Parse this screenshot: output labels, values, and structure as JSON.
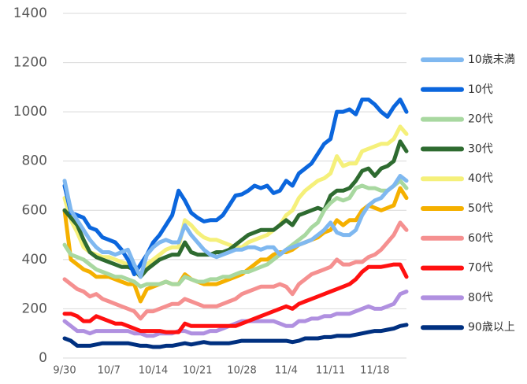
{
  "chart_data": {
    "type": "line",
    "categories": [
      "9/30",
      null,
      null,
      null,
      null,
      null,
      null,
      "10/7",
      null,
      null,
      null,
      null,
      null,
      null,
      "10/14",
      null,
      null,
      null,
      null,
      null,
      null,
      "10/21",
      null,
      null,
      null,
      null,
      null,
      null,
      "10/28",
      null,
      null,
      null,
      null,
      null,
      null,
      "11/4",
      null,
      null,
      null,
      null,
      null,
      null,
      "11/11",
      null,
      null,
      null,
      null,
      null,
      null,
      "11/18",
      null,
      null,
      null,
      null,
      null
    ],
    "ylim": [
      0,
      1400
    ],
    "yticks": [
      0,
      200,
      400,
      600,
      800,
      1000,
      1200,
      1400
    ],
    "grid": true,
    "legend": "right",
    "series": [
      {
        "name": "10歳未満",
        "color": "#7fb8f0",
        "values": [
          720,
          600,
          560,
          520,
          480,
          450,
          430,
          430,
          420,
          430,
          440,
          380,
          330,
          420,
          450,
          470,
          480,
          470,
          470,
          540,
          500,
          470,
          440,
          420,
          410,
          420,
          430,
          440,
          440,
          450,
          450,
          440,
          450,
          450,
          420,
          440,
          450,
          460,
          470,
          480,
          500,
          520,
          550,
          510,
          500,
          500,
          520,
          580,
          620,
          640,
          650,
          680,
          700,
          740,
          720
        ]
      },
      {
        "name": "10代",
        "color": "#0b66dd",
        "values": [
          700,
          590,
          580,
          570,
          530,
          520,
          490,
          480,
          470,
          440,
          400,
          340,
          380,
          420,
          470,
          500,
          540,
          580,
          680,
          640,
          590,
          570,
          555,
          560,
          560,
          580,
          620,
          660,
          665,
          680,
          700,
          690,
          700,
          670,
          680,
          720,
          700,
          750,
          770,
          790,
          830,
          870,
          890,
          1000,
          1000,
          1010,
          990,
          1050,
          1050,
          1030,
          1000,
          980,
          1020,
          1050,
          1000
        ]
      },
      {
        "name": "20代",
        "color": "#a8d8a0",
        "values": [
          460,
          420,
          410,
          400,
          380,
          360,
          350,
          340,
          330,
          330,
          320,
          310,
          290,
          300,
          300,
          300,
          310,
          300,
          300,
          330,
          320,
          310,
          310,
          320,
          320,
          330,
          330,
          340,
          350,
          350,
          360,
          370,
          380,
          400,
          420,
          440,
          460,
          480,
          500,
          530,
          550,
          600,
          630,
          650,
          640,
          650,
          690,
          700,
          690,
          690,
          680,
          680,
          700,
          720,
          690
        ]
      },
      {
        "name": "30代",
        "color": "#2e6b30",
        "values": [
          600,
          570,
          540,
          480,
          430,
          410,
          400,
          390,
          380,
          370,
          370,
          360,
          330,
          360,
          380,
          400,
          410,
          420,
          420,
          470,
          430,
          420,
          420,
          420,
          430,
          430,
          440,
          460,
          480,
          500,
          510,
          520,
          520,
          520,
          540,
          560,
          540,
          580,
          590,
          600,
          610,
          600,
          660,
          680,
          680,
          690,
          720,
          760,
          770,
          740,
          770,
          780,
          800,
          880,
          840
        ]
      },
      {
        "name": "40代",
        "color": "#f5f07a",
        "values": [
          650,
          560,
          510,
          450,
          430,
          420,
          410,
          410,
          400,
          390,
          380,
          360,
          330,
          380,
          400,
          420,
          440,
          450,
          450,
          560,
          540,
          510,
          490,
          480,
          480,
          470,
          460,
          450,
          450,
          470,
          480,
          490,
          500,
          520,
          540,
          580,
          600,
          650,
          680,
          700,
          720,
          730,
          750,
          820,
          780,
          790,
          790,
          840,
          850,
          860,
          870,
          870,
          890,
          940,
          910
        ]
      },
      {
        "name": "50代",
        "color": "#f5b000",
        "values": [
          600,
          400,
          380,
          360,
          350,
          330,
          330,
          330,
          320,
          310,
          300,
          300,
          230,
          280,
          290,
          300,
          310,
          300,
          300,
          340,
          320,
          310,
          300,
          300,
          300,
          310,
          320,
          330,
          340,
          360,
          380,
          400,
          400,
          420,
          430,
          430,
          440,
          460,
          470,
          480,
          490,
          510,
          520,
          560,
          540,
          560,
          560,
          600,
          620,
          610,
          600,
          610,
          620,
          690,
          650
        ]
      },
      {
        "name": "60代",
        "color": "#f59090",
        "values": [
          320,
          300,
          280,
          270,
          250,
          260,
          240,
          230,
          220,
          210,
          200,
          190,
          160,
          190,
          190,
          200,
          210,
          220,
          220,
          240,
          230,
          220,
          210,
          210,
          210,
          220,
          230,
          240,
          260,
          270,
          280,
          290,
          290,
          290,
          300,
          290,
          260,
          300,
          320,
          340,
          350,
          360,
          370,
          400,
          380,
          380,
          390,
          390,
          410,
          420,
          440,
          470,
          500,
          550,
          520
        ]
      },
      {
        "name": "70代",
        "color": "#ff1010",
        "values": [
          180,
          180,
          170,
          150,
          150,
          170,
          160,
          150,
          140,
          140,
          130,
          120,
          110,
          110,
          110,
          110,
          105,
          105,
          105,
          140,
          130,
          130,
          130,
          130,
          130,
          130,
          130,
          130,
          140,
          150,
          160,
          170,
          180,
          190,
          200,
          210,
          200,
          220,
          230,
          240,
          250,
          260,
          270,
          280,
          290,
          300,
          320,
          350,
          370,
          370,
          370,
          375,
          380,
          380,
          330
        ]
      },
      {
        "name": "80代",
        "color": "#b090e0",
        "values": [
          150,
          130,
          110,
          110,
          100,
          110,
          110,
          110,
          110,
          110,
          110,
          100,
          100,
          90,
          90,
          100,
          100,
          100,
          110,
          110,
          100,
          100,
          100,
          110,
          110,
          120,
          130,
          140,
          150,
          150,
          150,
          150,
          150,
          150,
          140,
          130,
          130,
          150,
          150,
          160,
          160,
          170,
          170,
          180,
          180,
          180,
          190,
          200,
          210,
          200,
          200,
          210,
          220,
          260,
          270
        ]
      },
      {
        "name": "90歳以上",
        "color": "#003080",
        "values": [
          80,
          70,
          50,
          50,
          50,
          55,
          60,
          60,
          60,
          60,
          60,
          55,
          50,
          50,
          45,
          45,
          50,
          50,
          55,
          60,
          55,
          60,
          65,
          60,
          60,
          60,
          60,
          65,
          70,
          70,
          70,
          70,
          70,
          70,
          70,
          70,
          65,
          70,
          80,
          80,
          80,
          85,
          85,
          90,
          90,
          90,
          95,
          100,
          105,
          110,
          110,
          115,
          120,
          130,
          135
        ]
      }
    ]
  }
}
